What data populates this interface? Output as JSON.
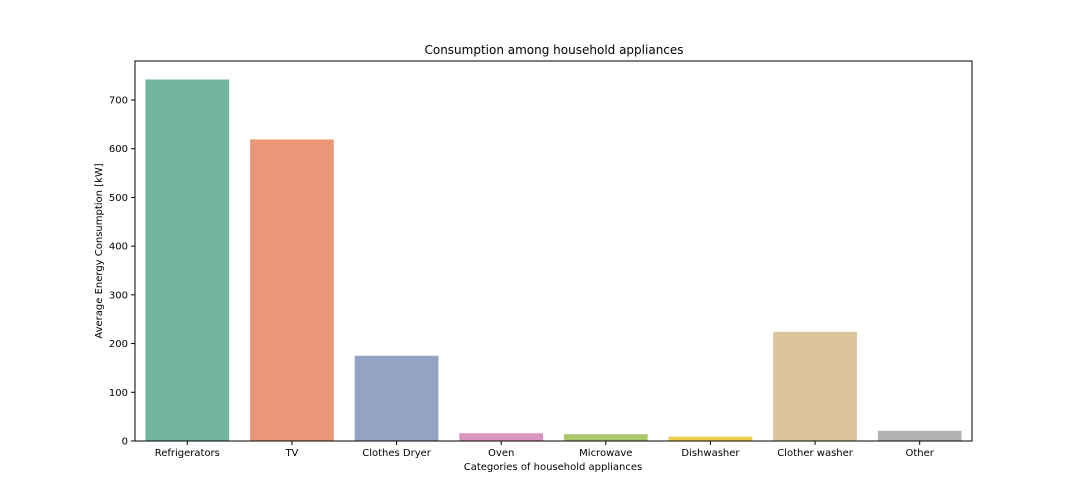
{
  "chart_data": {
    "type": "bar",
    "title": "Consumption among household appliances",
    "xlabel": "Categories of household appliances",
    "ylabel": "Average Energy Consumption [kW]",
    "categories": [
      "Refrigerators",
      "TV",
      "Clothes Dryer",
      "Oven",
      "Microwave",
      "Dishwasher",
      "Clother washer",
      "Other"
    ],
    "values": [
      742,
      619,
      175,
      16,
      14,
      9,
      224,
      21
    ],
    "ylim": [
      0,
      780
    ],
    "yticks": [
      0,
      100,
      200,
      300,
      400,
      500,
      600,
      700
    ],
    "grid": false,
    "legend": "none",
    "colors": [
      "#72b6a0",
      "#e99776",
      "#94a3c3",
      "#d997c0",
      "#a9c96c",
      "#ebcf4c",
      "#dbc49e",
      "#b3b3b3"
    ]
  }
}
